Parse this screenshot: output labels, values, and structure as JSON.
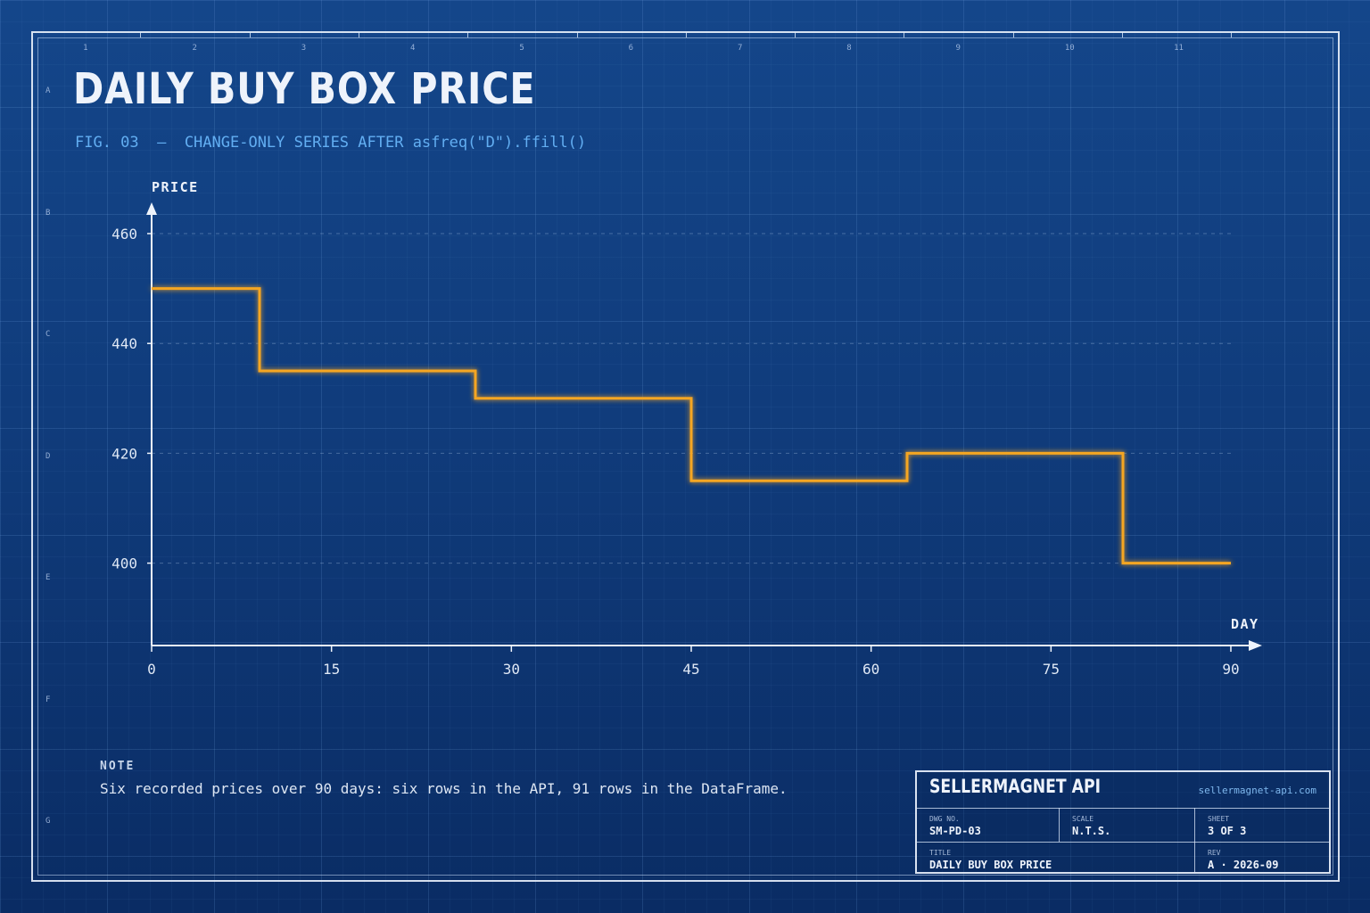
{
  "header": {
    "title": "DAILY BUY BOX PRICE",
    "subtitle": "FIG. 03  —  CHANGE-ONLY SERIES AFTER asfreq(\"D\").ffill()"
  },
  "frame": {
    "column_numbers": [
      "1",
      "2",
      "3",
      "4",
      "5",
      "6",
      "7",
      "8",
      "9",
      "10",
      "11"
    ],
    "row_letters": [
      "A",
      "B",
      "C",
      "D",
      "E",
      "F",
      "G"
    ]
  },
  "chart_data": {
    "type": "line",
    "step": true,
    "ylabel": "PRICE",
    "xlabel": "DAY",
    "xlim": [
      0,
      90
    ],
    "ylim": [
      385,
      460
    ],
    "x_ticks": [
      0,
      15,
      30,
      45,
      60,
      75,
      90
    ],
    "y_ticks": [
      400,
      420,
      440,
      460
    ],
    "grid": "horizontal dashed",
    "series": [
      {
        "x": [
          0,
          9,
          27,
          45,
          63,
          81,
          90
        ],
        "y": [
          450,
          435,
          430,
          415,
          420,
          400,
          400
        ],
        "color": "#f5a623"
      }
    ]
  },
  "note": {
    "label": "NOTE",
    "text": "Six recorded prices over 90 days: six rows in the API, 91 rows in the DataFrame."
  },
  "titleblock": {
    "company": "SELLERMAGNET API",
    "url": "sellermagnet-api.com",
    "dwg_no_label": "DWG NO.",
    "dwg_no": "SM-PD-03",
    "scale_label": "SCALE",
    "scale": "N.T.S.",
    "sheet_label": "SHEET",
    "sheet": "3 OF 3",
    "title_label": "TITLE",
    "title": "DAILY BUY BOX PRICE",
    "rev_label": "REV",
    "rev": "A · 2026-09"
  },
  "colors": {
    "background": "#123f80",
    "line": "#f5a623",
    "axis": "#eef3fb",
    "accent_text": "#62aef2"
  }
}
